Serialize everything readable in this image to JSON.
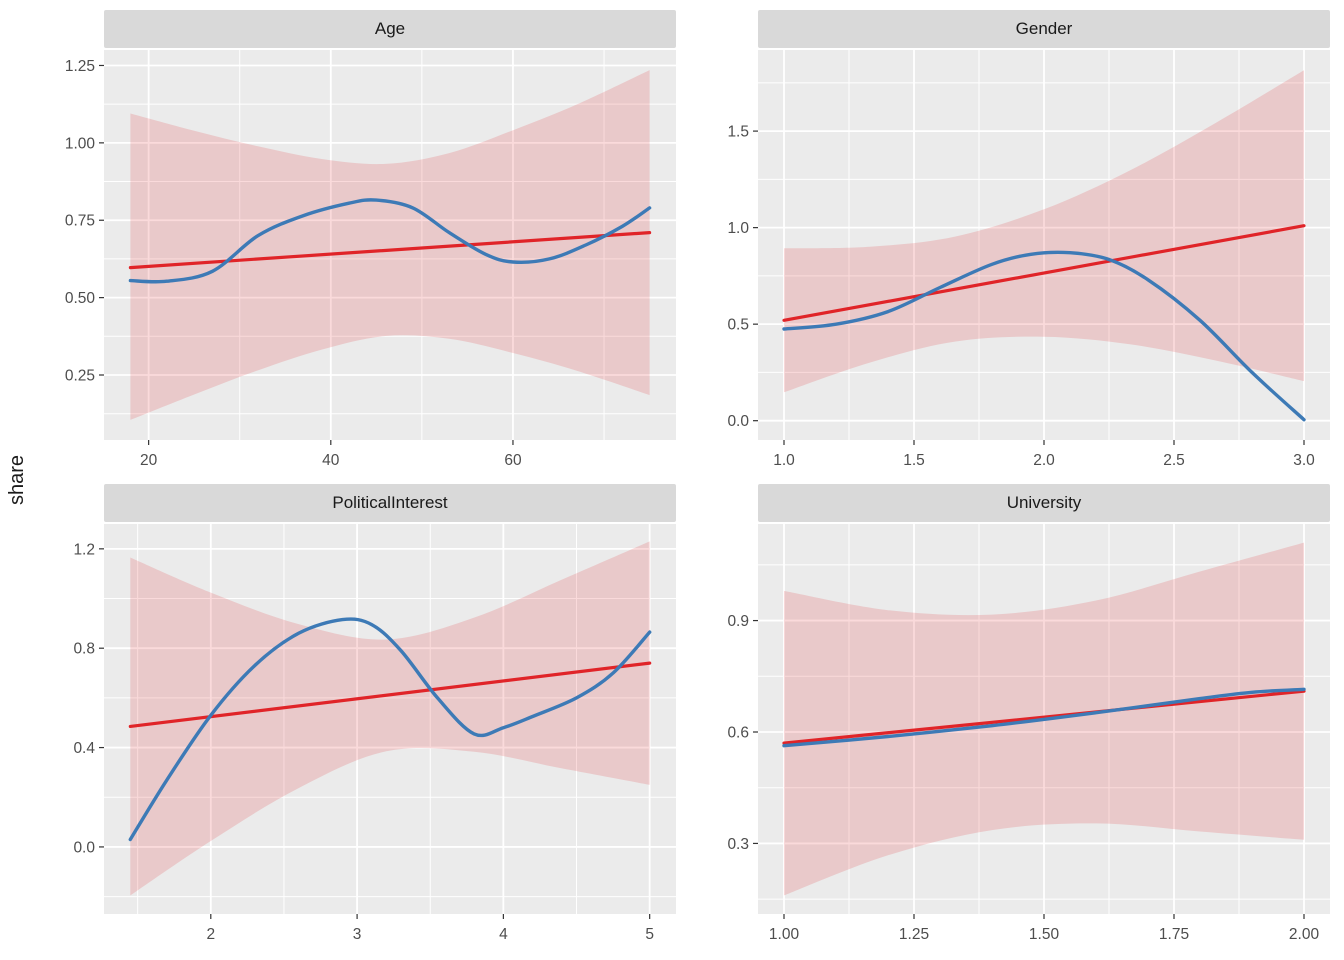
{
  "figure": {
    "y_axis_title": "share",
    "background": "#FFFFFF",
    "panel_background": "#EBEBEB",
    "strip_background": "#D9D9D9",
    "gridline_color": "#FFFFFF",
    "tick_mark_color": "#333333",
    "tick_label_color": "#4D4D4D",
    "strip_text_color": "#1A1A1A",
    "line_colors": {
      "linear_fit": "#E02428",
      "smooth_fit": "#3D7AB6",
      "ribbon": "#E02428"
    },
    "ribbon_opacity": 0.17,
    "legend": "none"
  },
  "chart_data": [
    {
      "type": "line",
      "title": "Age",
      "xlim": [
        15.1,
        77.9
      ],
      "ylim": [
        0.04,
        1.3
      ],
      "grid": true,
      "x_tick_values": [
        20,
        40,
        60
      ],
      "x_tick_labels": [
        "20",
        "40",
        "60"
      ],
      "y_tick_values": [
        0.25,
        0.5,
        0.75,
        1.0,
        1.25
      ],
      "y_tick_labels": [
        "0.25",
        "0.50",
        "0.75",
        "1.00",
        "1.25"
      ],
      "linear_fit": {
        "x": [
          18,
          75
        ],
        "y": [
          0.597,
          0.71
        ]
      },
      "ribbon": {
        "x": [
          18,
          25,
          32,
          39,
          46,
          53,
          60,
          67,
          75
        ],
        "lower": [
          0.105,
          0.187,
          0.265,
          0.332,
          0.376,
          0.367,
          0.321,
          0.264,
          0.185
        ],
        "upper": [
          1.095,
          1.039,
          0.989,
          0.948,
          0.932,
          0.967,
          1.041,
          1.124,
          1.235
        ]
      },
      "smooth": {
        "x": [
          18,
          22,
          27,
          32,
          37,
          42,
          45,
          49,
          53,
          57,
          60,
          64,
          68,
          72,
          75
        ],
        "y": [
          0.555,
          0.553,
          0.585,
          0.7,
          0.765,
          0.805,
          0.815,
          0.79,
          0.71,
          0.64,
          0.615,
          0.625,
          0.67,
          0.73,
          0.79
        ]
      }
    },
    {
      "type": "line",
      "title": "Gender",
      "xlim": [
        0.9,
        3.1
      ],
      "ylim": [
        -0.1,
        1.92
      ],
      "grid": true,
      "x_tick_values": [
        1.0,
        1.5,
        2.0,
        2.5,
        3.0
      ],
      "x_tick_labels": [
        "1.0",
        "1.5",
        "2.0",
        "2.5",
        "3.0"
      ],
      "y_tick_values": [
        0.0,
        0.5,
        1.0,
        1.5
      ],
      "y_tick_labels": [
        "0.0",
        "0.5",
        "1.0",
        "1.5"
      ],
      "linear_fit": {
        "x": [
          1.0,
          3.0
        ],
        "y": [
          0.52,
          1.01
        ]
      },
      "ribbon": {
        "x": [
          1.0,
          1.33,
          1.66,
          2.0,
          2.33,
          2.66,
          3.0
        ],
        "lower": [
          0.147,
          0.301,
          0.41,
          0.435,
          0.396,
          0.312,
          0.205
        ],
        "upper": [
          0.893,
          0.901,
          0.954,
          1.095,
          1.296,
          1.542,
          1.815
        ]
      },
      "smooth": {
        "x": [
          1.0,
          1.2,
          1.4,
          1.6,
          1.8,
          1.95,
          2.1,
          2.25,
          2.4,
          2.6,
          2.8,
          3.0
        ],
        "y": [
          0.475,
          0.5,
          0.565,
          0.69,
          0.81,
          0.862,
          0.87,
          0.835,
          0.73,
          0.52,
          0.25,
          0.005
        ]
      }
    },
    {
      "type": "line",
      "title": "PoliticalInterest",
      "xlim": [
        1.27,
        5.18
      ],
      "ylim": [
        -0.27,
        1.3
      ],
      "grid": true,
      "x_tick_values": [
        2,
        3,
        4,
        5
      ],
      "x_tick_labels": [
        "2",
        "3",
        "4",
        "5"
      ],
      "y_tick_values": [
        0.0,
        0.4,
        0.8,
        1.2
      ],
      "y_tick_labels": [
        "0.0",
        "0.4",
        "0.8",
        "1.2"
      ],
      "linear_fit": {
        "x": [
          1.45,
          5.0
        ],
        "y": [
          0.485,
          0.74
        ]
      },
      "ribbon": {
        "x": [
          1.45,
          2.0,
          2.6,
          3.2,
          3.8,
          4.4,
          5.0
        ],
        "lower": [
          -0.195,
          0.024,
          0.237,
          0.385,
          0.383,
          0.316,
          0.25
        ],
        "upper": [
          1.165,
          1.024,
          0.897,
          0.835,
          0.923,
          1.076,
          1.23
        ]
      },
      "smooth": {
        "x": [
          1.45,
          1.7,
          2.0,
          2.3,
          2.6,
          2.9,
          3.1,
          3.3,
          3.55,
          3.8,
          4.0,
          4.2,
          4.5,
          4.75,
          5.0
        ],
        "y": [
          0.03,
          0.27,
          0.53,
          0.73,
          0.86,
          0.915,
          0.895,
          0.79,
          0.6,
          0.455,
          0.48,
          0.525,
          0.6,
          0.7,
          0.865
        ]
      }
    },
    {
      "type": "line",
      "title": "University",
      "xlim": [
        0.95,
        2.05
      ],
      "ylim": [
        0.11,
        1.16
      ],
      "grid": true,
      "x_tick_values": [
        1.0,
        1.25,
        1.5,
        1.75,
        2.0
      ],
      "x_tick_labels": [
        "1.00",
        "1.25",
        "1.50",
        "1.75",
        "2.00"
      ],
      "y_tick_values": [
        0.3,
        0.6,
        0.9
      ],
      "y_tick_labels": [
        "0.3",
        "0.6",
        "0.9"
      ],
      "linear_fit": {
        "x": [
          1.0,
          2.0
        ],
        "y": [
          0.57,
          0.71
        ]
      },
      "ribbon": {
        "x": [
          1.0,
          1.2,
          1.4,
          1.6,
          1.8,
          2.0
        ],
        "lower": [
          0.16,
          0.268,
          0.336,
          0.354,
          0.332,
          0.31
        ],
        "upper": [
          0.98,
          0.928,
          0.916,
          0.954,
          1.032,
          1.11
        ]
      },
      "smooth": {
        "x": [
          1.0,
          1.2,
          1.4,
          1.6,
          1.8,
          1.9,
          2.0
        ],
        "y": [
          0.563,
          0.588,
          0.617,
          0.652,
          0.69,
          0.707,
          0.715
        ]
      }
    }
  ]
}
